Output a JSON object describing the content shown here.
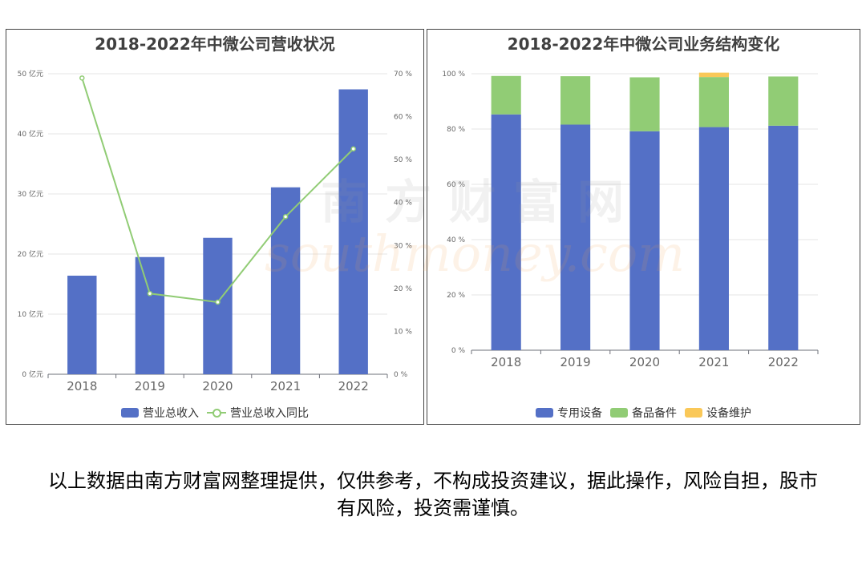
{
  "chart_data": [
    {
      "type": "bar",
      "title": "2018-2022年中微公司营收状况",
      "categories": [
        "2018",
        "2019",
        "2020",
        "2021",
        "2022"
      ],
      "series": [
        {
          "name": "营业总收入",
          "type": "bar",
          "axis": "left",
          "values": [
            16.4,
            19.5,
            22.7,
            31.1,
            47.4
          ],
          "color": "#5470c6"
        },
        {
          "name": "营业总收入同比",
          "type": "line",
          "axis": "right",
          "values": [
            69.0,
            18.8,
            16.8,
            36.7,
            52.5
          ],
          "color": "#91cc75"
        }
      ],
      "y_left": {
        "min": 0,
        "max": 50,
        "ticks": [
          "0 亿元",
          "10 亿元",
          "20 亿元",
          "30 亿元",
          "40 亿元",
          "50 亿元"
        ]
      },
      "y_right": {
        "min": 0,
        "max": 70,
        "ticks": [
          "0 %",
          "10 %",
          "20 %",
          "30 %",
          "40 %",
          "50 %",
          "60 %",
          "70 %"
        ]
      },
      "grid": true,
      "legend": "bottom"
    },
    {
      "type": "bar",
      "stacked": true,
      "title": "2018-2022年中微公司业务结构变化",
      "categories": [
        "2018",
        "2019",
        "2020",
        "2021",
        "2022"
      ],
      "series": [
        {
          "name": "专用设备",
          "values": [
            85.3,
            81.6,
            79.2,
            80.7,
            81.2
          ],
          "color": "#5470c6"
        },
        {
          "name": "备品备件",
          "values": [
            13.9,
            17.5,
            19.5,
            18.1,
            17.8
          ],
          "color": "#91cc75"
        },
        {
          "name": "设备维护",
          "values": [
            0,
            0,
            0,
            1.6,
            0
          ],
          "color": "#fac858"
        }
      ],
      "y": {
        "min": 0,
        "max": 100,
        "ticks": [
          "0 %",
          "20 %",
          "40 %",
          "60 %",
          "80 %",
          "100 %"
        ]
      },
      "grid": true,
      "legend": "bottom"
    }
  ],
  "watermark": {
    "cn": "南方财富网",
    "en": "southmoney.com"
  },
  "disclaimer": "以上数据由南方财富网整理提供，仅供参考，不构成投资建议，据此操作，风险自担，股市有风险，投资需谨慎。"
}
